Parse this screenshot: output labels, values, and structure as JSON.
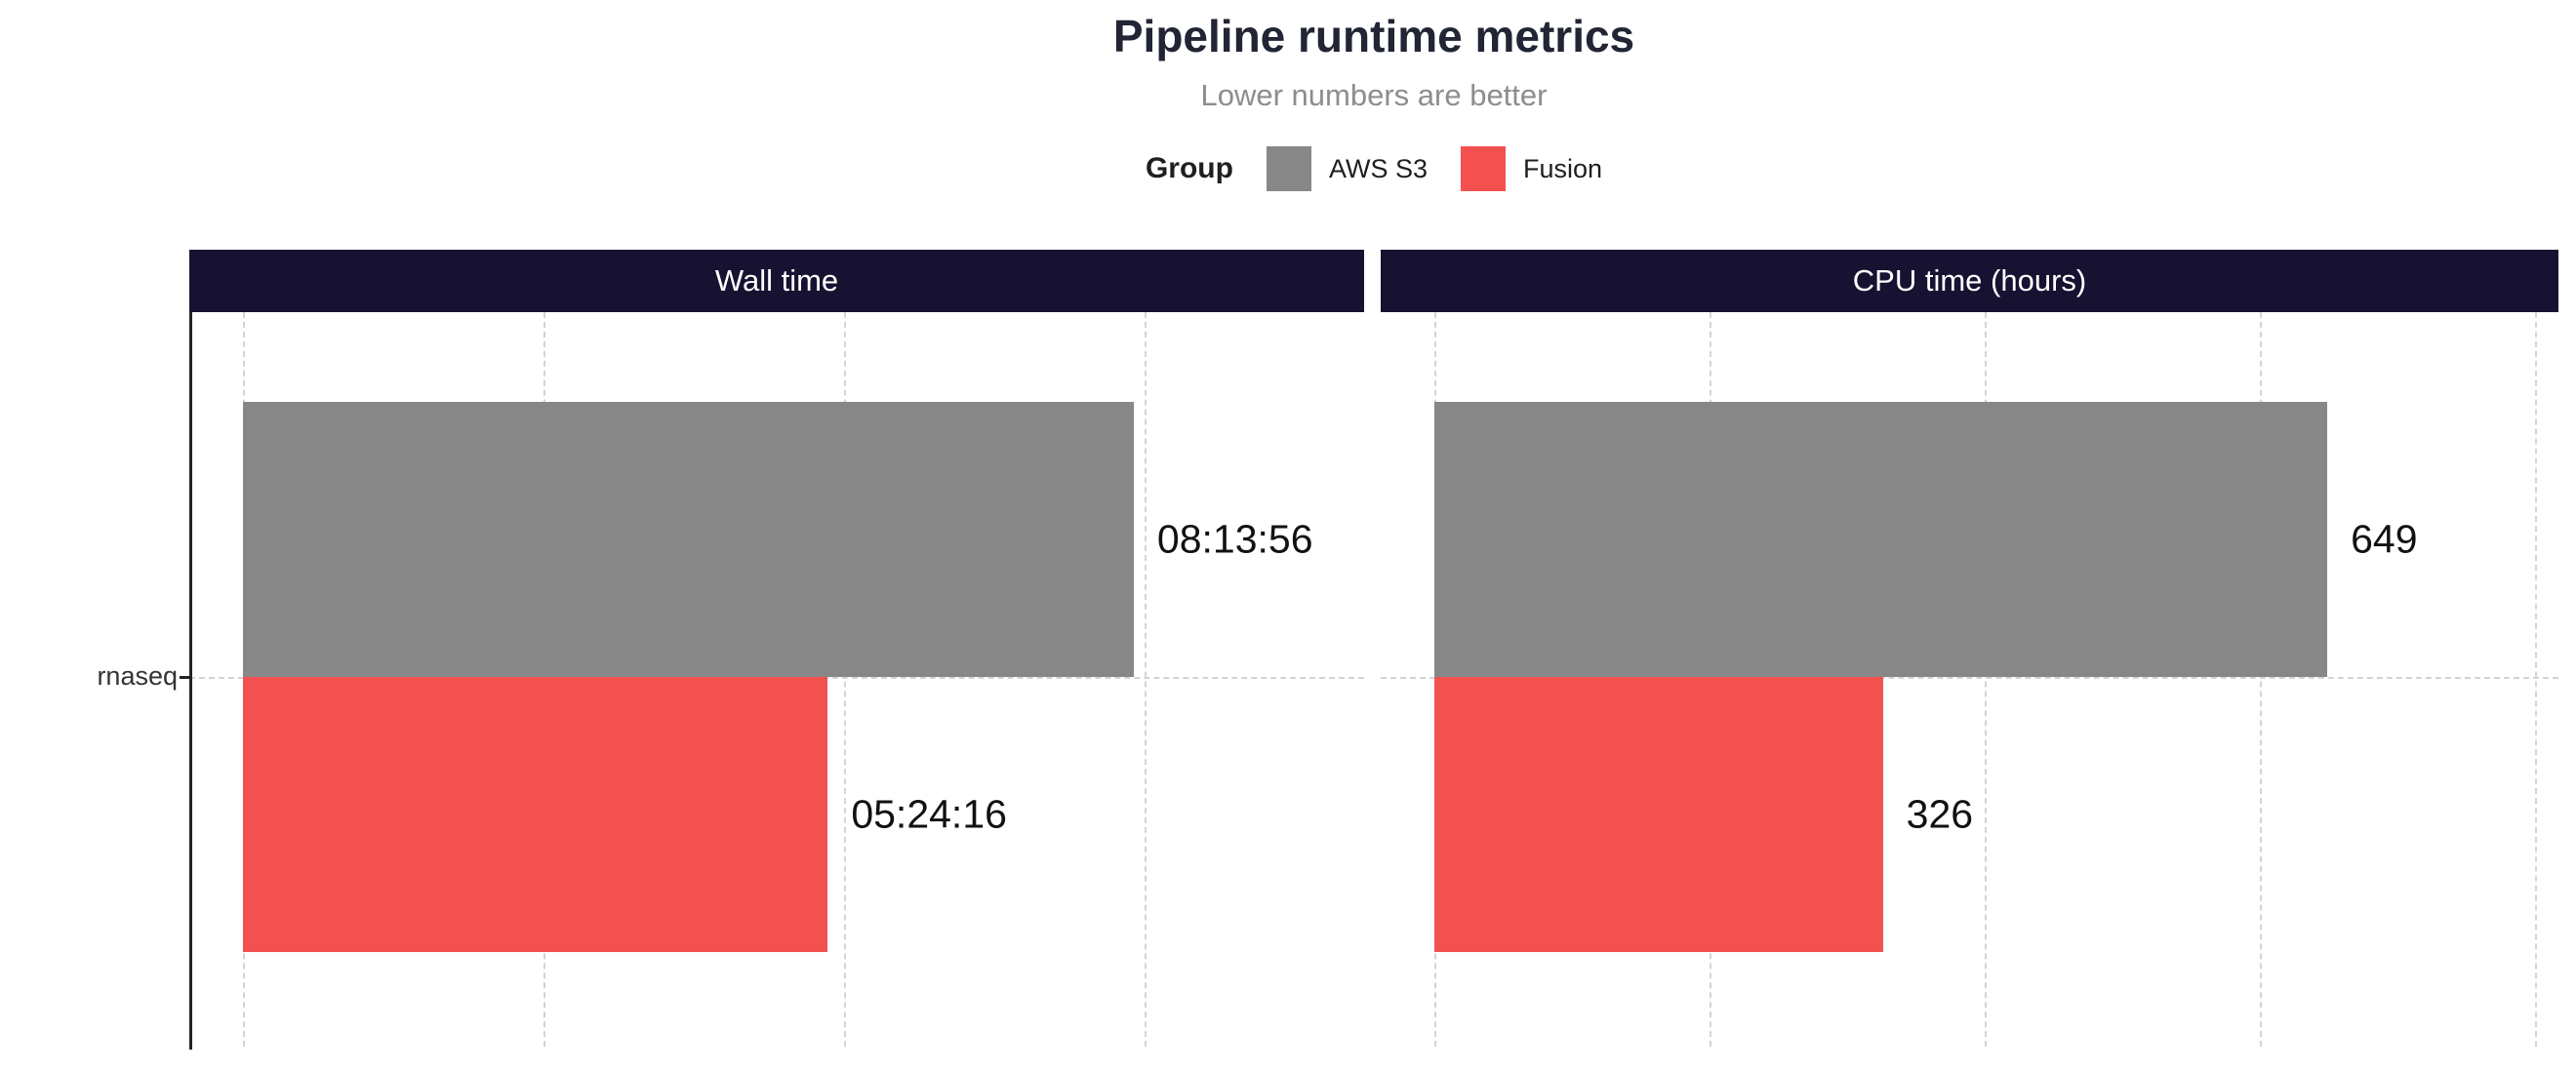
{
  "title": "Pipeline runtime metrics",
  "subtitle": "Lower numbers are better",
  "legend": {
    "title": "Group",
    "items": [
      {
        "label": "AWS S3",
        "color": "#878787"
      },
      {
        "label": "Fusion",
        "color": "#f35150"
      }
    ]
  },
  "colors": {
    "strip_bg": "#171231",
    "strip_text": "#ffffff",
    "grid": "#d4d4d4",
    "axis": "#222222",
    "title": "#212534",
    "subtitle": "#8d8d8d"
  },
  "chart_data": {
    "type": "bar",
    "orientation": "horizontal",
    "grid": "dashed",
    "legend_position": "top",
    "categories": [
      "rnaseq"
    ],
    "panels": [
      {
        "title": "Wall time",
        "unit": "seconds",
        "xmax": 37300,
        "grid_step": 10000,
        "series": [
          {
            "name": "AWS S3",
            "value": 29636,
            "label": "08:13:56",
            "color": "#878787"
          },
          {
            "name": "Fusion",
            "value": 19456,
            "label": "05:24:16",
            "color": "#f35150"
          }
        ]
      },
      {
        "title": "CPU time (hours)",
        "unit": "hours",
        "xmax": 817,
        "grid_step": 200,
        "series": [
          {
            "name": "AWS S3",
            "value": 649,
            "label": "649",
            "color": "#878787"
          },
          {
            "name": "Fusion",
            "value": 326,
            "label": "326",
            "color": "#f35150"
          }
        ]
      }
    ]
  }
}
